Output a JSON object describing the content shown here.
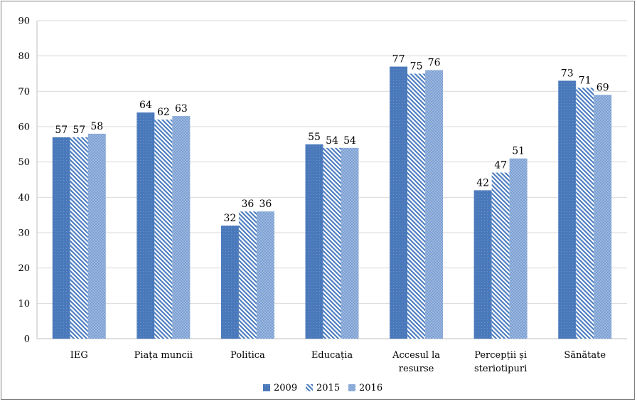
{
  "chart_data": {
    "type": "bar",
    "title": "",
    "xlabel": "",
    "ylabel": "",
    "ylim": [
      0,
      90
    ],
    "yticks": [
      0,
      10,
      20,
      30,
      40,
      50,
      60,
      70,
      80,
      90
    ],
    "grid": "horizontal",
    "legend_position": "bottom",
    "categories": [
      [
        "IEG"
      ],
      [
        "Piața muncii"
      ],
      [
        "Politica"
      ],
      [
        "Educația"
      ],
      [
        "Accesul la",
        "resurse"
      ],
      [
        "Percepții și",
        "steriotipuri"
      ],
      [
        "Sănătate"
      ]
    ],
    "series": [
      {
        "name": "2009",
        "values": [
          57,
          64,
          32,
          55,
          77,
          42,
          73
        ],
        "color": "#4f7fc0",
        "pattern": "dotted-solid"
      },
      {
        "name": "2015",
        "values": [
          57,
          62,
          36,
          54,
          75,
          47,
          71
        ],
        "color": "#4f7fc0",
        "pattern": "diagonal-stripes"
      },
      {
        "name": "2016",
        "values": [
          58,
          63,
          36,
          54,
          76,
          51,
          69
        ],
        "color": "#8eadd8",
        "pattern": "checker"
      }
    ]
  }
}
